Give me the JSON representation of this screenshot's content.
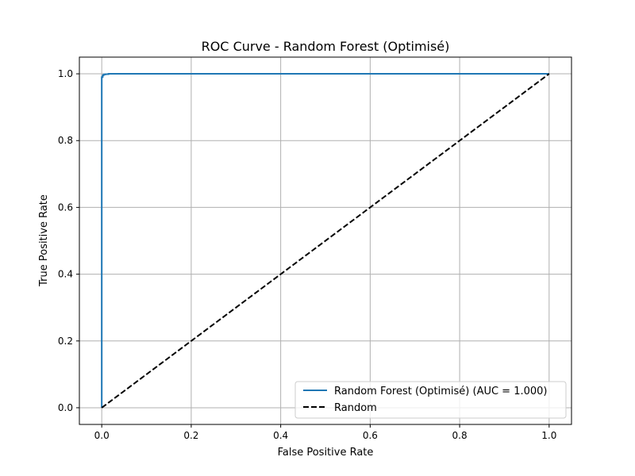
{
  "chart_data": {
    "type": "line",
    "title": "ROC Curve - Random Forest (Optimisé)",
    "xlabel": "False Positive Rate",
    "ylabel": "True Positive Rate",
    "xlim": [
      -0.05,
      1.05
    ],
    "ylim": [
      -0.05,
      1.05
    ],
    "x_ticks": [
      0.0,
      0.2,
      0.4,
      0.6,
      0.8,
      1.0
    ],
    "y_ticks": [
      0.0,
      0.2,
      0.4,
      0.6,
      0.8,
      1.0
    ],
    "x_tick_labels": [
      "0.0",
      "0.2",
      "0.4",
      "0.6",
      "0.8",
      "1.0"
    ],
    "y_tick_labels": [
      "0.0",
      "0.2",
      "0.4",
      "0.6",
      "0.8",
      "1.0"
    ],
    "grid": true,
    "legend_position": "lower-right",
    "series": [
      {
        "name": "Random Forest (Optimisé) (AUC = 1.000)",
        "color": "#1f77b4",
        "style": "solid",
        "x": [
          0.0,
          0.0,
          0.0,
          0.002,
          0.002,
          0.004,
          0.004,
          0.008,
          0.008,
          0.015,
          0.015,
          1.0
        ],
        "y": [
          0.0,
          0.5,
          0.99,
          0.99,
          0.995,
          0.995,
          0.998,
          0.998,
          0.999,
          0.999,
          1.0,
          1.0
        ]
      },
      {
        "name": "Random",
        "color": "#000000",
        "style": "dashed",
        "x": [
          0.0,
          1.0
        ],
        "y": [
          0.0,
          1.0
        ]
      }
    ]
  }
}
